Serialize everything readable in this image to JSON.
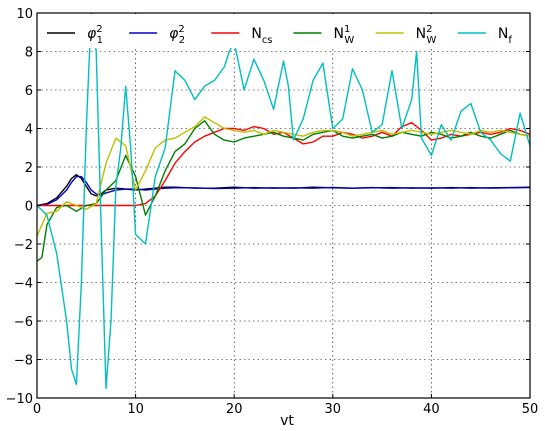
{
  "chart_data": {
    "type": "line",
    "xlabel": "vt",
    "ylabel": "",
    "xlim": [
      0,
      50
    ],
    "ylim": [
      -10,
      10
    ],
    "xticks": [
      "0",
      "10",
      "20",
      "30",
      "40",
      "50"
    ],
    "yticks": [
      "−10",
      "−8",
      "−6",
      "−4",
      "−2",
      "0",
      "2",
      "4",
      "6",
      "8",
      "10"
    ],
    "grid": true,
    "legend_position": "top",
    "series": [
      {
        "name": "φ1²",
        "label_main": "φ",
        "label_sub": "1",
        "label_sup": "2",
        "color": "#000000",
        "x": [
          0,
          1,
          2,
          3,
          3.5,
          4,
          4.5,
          5,
          5.5,
          6,
          6.5,
          7,
          8,
          9,
          10,
          11,
          12,
          13,
          14,
          16,
          18,
          20,
          22,
          24,
          26,
          28,
          30,
          32,
          34,
          36,
          38,
          40,
          42,
          44,
          46,
          48,
          50
        ],
        "y": [
          0,
          0.1,
          0.4,
          1.0,
          1.4,
          1.6,
          1.4,
          1.0,
          0.6,
          0.5,
          0.6,
          0.8,
          0.9,
          0.85,
          0.8,
          0.85,
          0.9,
          0.95,
          0.95,
          0.9,
          0.9,
          0.95,
          0.9,
          0.92,
          0.9,
          0.95,
          0.92,
          0.9,
          0.93,
          0.9,
          0.92,
          0.9,
          0.93,
          0.9,
          0.92,
          0.93,
          0.95
        ]
      },
      {
        "name": "φ2²",
        "label_main": "φ",
        "label_sub": "2",
        "label_sup": "2",
        "color": "#0000cc",
        "x": [
          0,
          1,
          2,
          3,
          3.5,
          4,
          4.5,
          5,
          5.5,
          6,
          6.5,
          7,
          8,
          9,
          10,
          11,
          12,
          13,
          14,
          16,
          18,
          20,
          22,
          24,
          26,
          28,
          30,
          32,
          34,
          36,
          38,
          40,
          42,
          44,
          46,
          48,
          50
        ],
        "y": [
          0,
          0.05,
          0.3,
          0.8,
          1.2,
          1.5,
          1.5,
          1.2,
          0.8,
          0.6,
          0.55,
          0.65,
          0.8,
          0.85,
          0.85,
          0.8,
          0.85,
          0.9,
          0.92,
          0.92,
          0.88,
          0.9,
          0.93,
          0.9,
          0.92,
          0.9,
          0.94,
          0.9,
          0.92,
          0.93,
          0.9,
          0.92,
          0.9,
          0.93,
          0.9,
          0.92,
          0.93
        ]
      },
      {
        "name": "Ncs",
        "label_main": "N",
        "label_sub": "cs",
        "label_sup": "",
        "color": "#ff0000",
        "x": [
          0,
          2,
          4,
          6,
          8,
          10,
          11,
          12,
          13,
          14,
          15,
          16,
          17,
          18,
          19,
          20,
          21,
          22,
          23,
          24,
          25,
          26,
          27,
          28,
          29,
          30,
          31,
          32,
          33,
          34,
          35,
          36,
          37,
          38,
          39,
          40,
          41,
          42,
          43,
          44,
          45,
          46,
          47,
          48,
          49,
          50
        ],
        "y": [
          0,
          0,
          0,
          0,
          0,
          0,
          0.1,
          0.5,
          1.3,
          2.2,
          2.8,
          3.3,
          3.6,
          3.8,
          4.0,
          4.0,
          3.9,
          4.1,
          4.0,
          3.7,
          3.8,
          3.5,
          3.2,
          3.3,
          3.6,
          3.6,
          3.8,
          3.7,
          3.5,
          3.6,
          3.8,
          3.6,
          4.1,
          4.3,
          3.9,
          3.4,
          3.5,
          3.7,
          3.6,
          3.7,
          3.8,
          3.7,
          3.8,
          4.0,
          3.9,
          3.7
        ]
      },
      {
        "name": "NW1",
        "label_main": "N",
        "label_sub": "W",
        "label_sup": "1",
        "color": "#008000",
        "x": [
          0,
          0.5,
          1,
          2,
          3,
          4,
          5,
          6,
          7,
          8,
          9,
          10,
          11,
          12,
          13,
          14,
          15,
          16,
          17,
          18,
          19,
          20,
          21,
          22,
          23,
          24,
          25,
          26,
          27,
          28,
          29,
          30,
          31,
          32,
          33,
          34,
          35,
          36,
          37,
          38,
          39,
          40,
          41,
          42,
          43,
          44,
          45,
          46,
          47,
          48,
          49,
          50
        ],
        "y": [
          -2.9,
          -2.7,
          -1.0,
          -0.1,
          0.0,
          -0.3,
          0.0,
          0.1,
          0.8,
          1.3,
          2.6,
          1.5,
          -0.5,
          0.5,
          1.8,
          2.8,
          3.2,
          4.0,
          4.4,
          3.7,
          3.4,
          3.3,
          3.5,
          3.6,
          3.7,
          3.8,
          3.6,
          3.5,
          3.4,
          3.7,
          3.8,
          3.9,
          3.6,
          3.5,
          3.6,
          3.7,
          3.5,
          3.6,
          3.8,
          3.7,
          3.6,
          3.8,
          3.7,
          3.5,
          3.6,
          3.8,
          3.6,
          3.5,
          3.7,
          3.9,
          3.7,
          3.6
        ]
      },
      {
        "name": "NW2",
        "label_main": "N",
        "label_sub": "W",
        "label_sup": "2",
        "color": "#bfbf00",
        "x": [
          0,
          1,
          2,
          3,
          4,
          5,
          6,
          7,
          8,
          9,
          10,
          11,
          12,
          13,
          14,
          15,
          16,
          17,
          18,
          19,
          20,
          21,
          22,
          23,
          24,
          25,
          26,
          27,
          28,
          29,
          30,
          31,
          32,
          33,
          34,
          35,
          36,
          37,
          38,
          39,
          40,
          41,
          42,
          43,
          44,
          45,
          46,
          47,
          48,
          49,
          50
        ],
        "y": [
          -1.6,
          -0.4,
          -0.3,
          0.2,
          0.0,
          -0.2,
          0.1,
          2.2,
          3.5,
          3.1,
          0.8,
          1.8,
          3.0,
          3.4,
          3.5,
          3.8,
          4.1,
          4.6,
          4.3,
          4.0,
          3.9,
          3.8,
          3.9,
          3.7,
          3.9,
          3.8,
          3.7,
          3.6,
          3.8,
          3.9,
          3.9,
          3.8,
          3.6,
          3.7,
          3.8,
          3.9,
          3.7,
          3.8,
          3.9,
          3.8,
          3.7,
          3.8,
          3.9,
          3.8,
          3.7,
          3.9,
          3.8,
          3.9,
          3.8,
          3.7,
          3.6
        ]
      },
      {
        "name": "Nf",
        "label_main": "N",
        "label_sub": "f",
        "label_sup": "",
        "color": "#00bfbf",
        "x": [
          0,
          1,
          2,
          3,
          3.5,
          4,
          4.5,
          5,
          5.5,
          6,
          6.5,
          7,
          7.5,
          8,
          8.5,
          9,
          9.5,
          10,
          11,
          12,
          13,
          14,
          15,
          16,
          17,
          18,
          19,
          19.5,
          20,
          21,
          22,
          23,
          24,
          25,
          25.5,
          26,
          27,
          28,
          29,
          30,
          31,
          32,
          33,
          34,
          35,
          36,
          37,
          38,
          38.5,
          39,
          40,
          41,
          42,
          43,
          44,
          45,
          46,
          47,
          48,
          49,
          50
        ],
        "y": [
          0,
          -0.5,
          -2.5,
          -6,
          -8.5,
          -9.3,
          -4,
          4,
          10,
          8,
          -1,
          -9.5,
          -6,
          1,
          3,
          6.2,
          3,
          -1.5,
          -2,
          1.5,
          3,
          7,
          6.5,
          5.5,
          6.2,
          6.5,
          7.2,
          8,
          8.5,
          6,
          7.6,
          6.5,
          5.0,
          7.5,
          6.2,
          3.4,
          4.5,
          6.5,
          7.4,
          4.0,
          4.5,
          7.1,
          6.0,
          3.8,
          4.2,
          7.0,
          4.0,
          5.5,
          8.0,
          3.5,
          2.6,
          4.2,
          3.4,
          4.9,
          5.3,
          3.8,
          3.4,
          2.7,
          2.3,
          4.8,
          3.1
        ]
      }
    ]
  }
}
